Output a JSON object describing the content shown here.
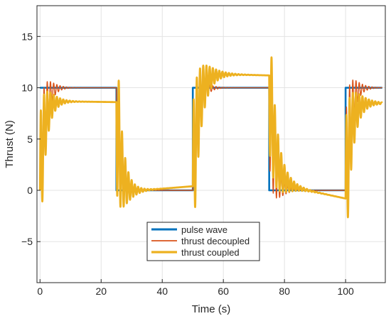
{
  "chart_data": {
    "type": "line",
    "title": "",
    "xlabel": "Time (s)",
    "ylabel": "Thrust (N)",
    "xlim": [
      -1,
      113
    ],
    "ylim": [
      -9,
      18
    ],
    "xticks": [
      0,
      20,
      40,
      60,
      80,
      100
    ],
    "yticks": [
      -5,
      0,
      5,
      10,
      15
    ],
    "grid": true,
    "legend_position": "bottom-center",
    "series": [
      {
        "name": "pulse wave",
        "color": "#0072BD",
        "points": [
          [
            0,
            10
          ],
          [
            25,
            10
          ],
          [
            25,
            0
          ],
          [
            50,
            0
          ],
          [
            50,
            10
          ],
          [
            75,
            10
          ],
          [
            75,
            0
          ],
          [
            100,
            0
          ],
          [
            100,
            10
          ],
          [
            112,
            10
          ]
        ]
      },
      {
        "name": "thrust decoupled",
        "color": "#D95319",
        "transitions": [
          {
            "t": 25,
            "from": 10,
            "to": 0,
            "peak": 6.0,
            "tau": 2.0,
            "period": 1.05,
            "final": 0.0
          },
          {
            "t": 50,
            "from": 0,
            "to": 10,
            "peak": 6.0,
            "tau": 2.0,
            "period": 1.05,
            "final": 10.0
          },
          {
            "t": 75,
            "from": 10,
            "to": 0,
            "peak": 7.0,
            "tau": 2.0,
            "period": 1.05,
            "final": 0.0
          },
          {
            "t": 100,
            "from": 0,
            "to": 10,
            "peak": 7.0,
            "tau": 2.0,
            "period": 1.05,
            "final": 10.0
          }
        ],
        "initial": {
          "t": 0,
          "from": 0,
          "to": 10,
          "peak": 6.5,
          "tau": 2.0,
          "period": 1.05,
          "final": 10.0
        }
      },
      {
        "name": "thrust coupled",
        "color": "#EDB120",
        "transitions": [
          {
            "t": 25,
            "from": 8.6,
            "to": 0,
            "peak": 8.5,
            "tau": 2.2,
            "period": 1.05,
            "final": -0.2,
            "drift_to": 0.4
          },
          {
            "t": 50,
            "from": 0.4,
            "to": 10,
            "peak": 7.6,
            "tau": 3.0,
            "period": 1.05,
            "final": 11.4,
            "drift_to": 11.2
          },
          {
            "t": 75,
            "from": 11.2,
            "to": 0,
            "peak": 7.0,
            "tau": 3.0,
            "period": 1.05,
            "final": 0.8,
            "drift_to": -0.8
          },
          {
            "t": 100,
            "from": -0.8,
            "to": 10,
            "peak": 7.4,
            "tau": 2.6,
            "period": 1.05,
            "final": 8.6,
            "drift_to": 8.5
          }
        ],
        "initial": {
          "t": 0,
          "from": 0,
          "to": 10,
          "peak": 7.0,
          "tau": 2.2,
          "period": 1.05,
          "final": 8.7,
          "drift_to": 8.6
        }
      }
    ]
  }
}
